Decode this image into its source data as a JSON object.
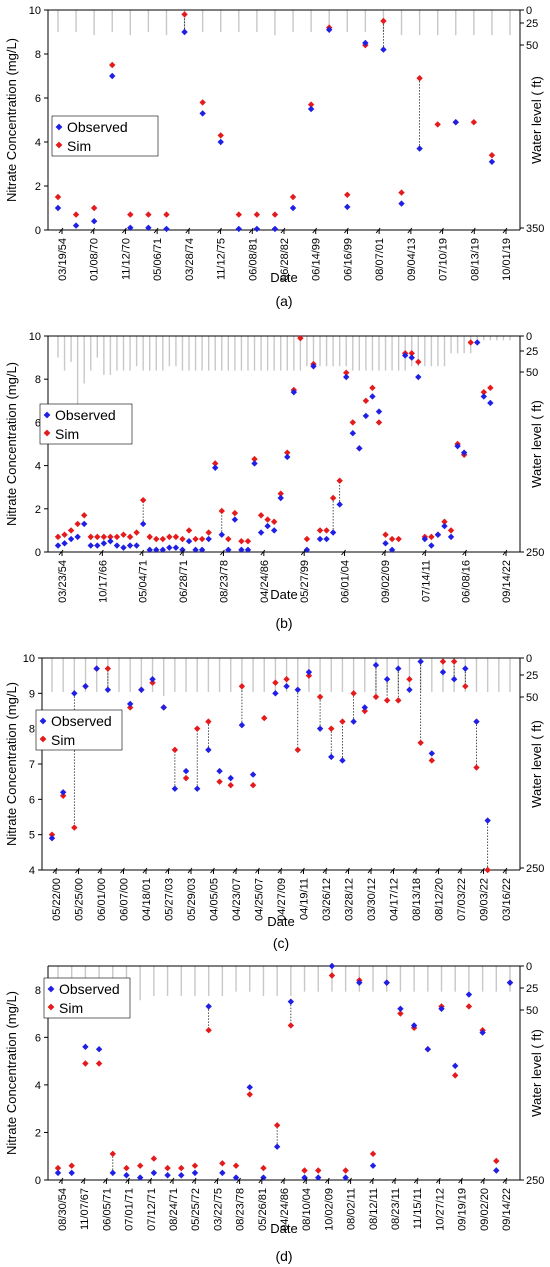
{
  "chart_data": [
    {
      "type": "scatter",
      "panel_label": "(a)",
      "xlabel": "Date",
      "ylabel": "Nitrate Concentration (mg/L)",
      "y2label": "Water level ( ft)",
      "ylim": [
        0,
        10
      ],
      "yticks": [
        0,
        2,
        4,
        6,
        8,
        10
      ],
      "y2lim": [
        0,
        350
      ],
      "y2ticks": [
        0,
        25,
        50,
        350
      ],
      "legend": [
        "Observed",
        "Sim"
      ],
      "legend_position": "middle-left",
      "categories": [
        "03/19/54",
        "01/08/70",
        "11/12/70",
        "05/06/71",
        "03/28/74",
        "11/12/75",
        "06/08/81",
        "06/28/82",
        "06/14/99",
        "06/16/99",
        "08/07/01",
        "09/04/13",
        "07/10/19",
        "08/13/19",
        "10/01/19"
      ],
      "n_points": 26,
      "observed": [
        1.0,
        0.2,
        0.4,
        7.0,
        0.1,
        0.1,
        0.05,
        9.0,
        5.3,
        4.0,
        0.05,
        0.05,
        0.05,
        1.0,
        5.5,
        9.1,
        1.05,
        8.5,
        8.2,
        1.2,
        3.7,
        null,
        4.9,
        null,
        3.1,
        null
      ],
      "sim": [
        1.5,
        0.7,
        1.0,
        7.5,
        0.7,
        0.7,
        0.7,
        9.8,
        5.8,
        4.3,
        0.7,
        0.7,
        0.7,
        1.5,
        5.7,
        9.2,
        1.6,
        8.4,
        9.5,
        1.7,
        6.9,
        4.8,
        4.9,
        4.9,
        3.4,
        null
      ],
      "water_level": [
        35,
        35,
        40,
        35,
        40,
        35,
        40,
        35,
        35,
        35,
        35,
        35,
        40,
        35,
        35,
        35,
        35,
        35,
        35,
        40,
        40,
        40,
        40,
        40,
        40,
        40
      ]
    },
    {
      "type": "scatter",
      "panel_label": "(b)",
      "xlabel": "Date",
      "ylabel": "Nitrate Concentration (mg/L)",
      "y2label": "Water level ( ft)",
      "ylim": [
        0,
        10
      ],
      "yticks": [
        0,
        2,
        4,
        6,
        8,
        10
      ],
      "y2lim": [
        0,
        250
      ],
      "y2ticks": [
        0,
        25,
        50,
        250
      ],
      "legend": [
        "Observed",
        "Sim"
      ],
      "legend_position": "middle-left",
      "categories": [
        "03/23/54",
        "10/17/66",
        "05/04/71",
        "06/28/71",
        "08/23/78",
        "04/24/86",
        "05/27/99",
        "06/01/04",
        "09/02/09",
        "07/14/11",
        "06/08/16",
        "09/14/22"
      ],
      "n_points": 70,
      "observed": [
        0.3,
        0.4,
        0.6,
        0.7,
        1.3,
        0.3,
        0.3,
        0.4,
        0.5,
        0.3,
        0.2,
        0.3,
        0.3,
        1.3,
        0.1,
        0.1,
        0.1,
        0.2,
        0.2,
        0.1,
        0.5,
        0.1,
        0.1,
        0.6,
        3.9,
        0.8,
        0.1,
        1.5,
        0.1,
        0.1,
        4.1,
        0.9,
        1.2,
        1.0,
        2.5,
        4.4,
        7.4,
        null,
        0.1,
        8.6,
        0.6,
        0.6,
        0.9,
        2.2,
        8.1,
        5.5,
        4.8,
        6.3,
        7.2,
        6.5,
        0.4,
        0.1,
        null,
        9.1,
        9.0,
        8.1,
        0.6,
        0.3,
        0.8,
        1.2,
        0.7,
        4.9,
        4.6,
        null,
        9.7,
        7.2,
        6.9,
        null,
        null,
        null
      ],
      "sim": [
        0.7,
        0.8,
        1.0,
        1.3,
        1.7,
        0.7,
        0.7,
        0.7,
        0.7,
        0.7,
        0.8,
        0.7,
        0.9,
        2.4,
        0.7,
        0.6,
        0.6,
        0.7,
        0.7,
        0.6,
        1.0,
        0.6,
        0.6,
        0.9,
        4.1,
        1.9,
        0.6,
        1.8,
        0.5,
        0.5,
        4.3,
        1.7,
        1.5,
        1.4,
        2.7,
        4.6,
        7.5,
        9.9,
        0.6,
        8.7,
        1.0,
        1.0,
        2.5,
        3.3,
        8.3,
        6.0,
        4.8,
        7.0,
        7.6,
        6.0,
        0.8,
        0.6,
        0.6,
        9.2,
        9.2,
        8.8,
        0.7,
        0.7,
        0.8,
        1.4,
        1.0,
        5.0,
        4.5,
        9.7,
        null,
        7.4,
        7.6,
        null,
        null,
        null
      ],
      "water_level": [
        25,
        40,
        30,
        80,
        55,
        40,
        25,
        45,
        45,
        40,
        40,
        40,
        35,
        40,
        40,
        40,
        40,
        35,
        35,
        40,
        40,
        40,
        40,
        40,
        40,
        40,
        40,
        40,
        40,
        40,
        40,
        40,
        40,
        40,
        40,
        40,
        40,
        40,
        35,
        35,
        35,
        35,
        35,
        35,
        35,
        40,
        40,
        40,
        40,
        40,
        40,
        40,
        40,
        40,
        35,
        35,
        35,
        35,
        35,
        35,
        20,
        20,
        20,
        20,
        10,
        5,
        5,
        5,
        5,
        5
      ]
    },
    {
      "type": "scatter",
      "panel_label": "(c)",
      "xlabel": "Date",
      "ylabel": "Nitrate Concentration (mg/L)",
      "y2label": "Water level ( ft)",
      "ylim": [
        4,
        10
      ],
      "yticks": [
        4,
        5,
        6,
        7,
        8,
        9,
        10
      ],
      "y2lim": [
        0,
        250
      ],
      "y2ticks": [
        0,
        25,
        50,
        250
      ],
      "legend": [
        "Observed",
        "Sim"
      ],
      "legend_position": "middle-left",
      "categories": [
        "05/22/00",
        "05/25/00",
        "06/01/00",
        "06/07/00",
        "04/18/01",
        "05/27/03",
        "05/29/03",
        "04/05/05",
        "04/23/07",
        "04/25/07",
        "04/27/09",
        "04/19/11",
        "03/26/12",
        "03/28/12",
        "03/30/12",
        "04/17/12",
        "08/13/18",
        "08/12/20",
        "07/03/22",
        "09/03/22",
        "03/16/22"
      ],
      "n_points": 42,
      "observed": [
        4.9,
        6.2,
        9.0,
        9.2,
        9.7,
        9.1,
        null,
        8.7,
        9.1,
        9.4,
        8.6,
        6.3,
        6.8,
        6.3,
        7.4,
        6.8,
        6.6,
        8.1,
        6.7,
        null,
        9.0,
        9.2,
        9.1,
        9.6,
        8.0,
        7.2,
        7.1,
        8.2,
        8.6,
        9.8,
        9.4,
        9.7,
        9.1,
        9.9,
        7.3,
        9.6,
        9.4,
        9.7,
        8.2,
        5.4,
        null,
        null
      ],
      "sim": [
        5.0,
        6.1,
        5.2,
        9.2,
        9.7,
        9.7,
        8.2,
        8.6,
        9.1,
        9.3,
        8.6,
        7.4,
        6.6,
        8.0,
        8.2,
        6.5,
        6.4,
        9.2,
        6.4,
        8.3,
        9.3,
        9.4,
        7.4,
        9.5,
        8.9,
        8.0,
        8.2,
        9.0,
        8.5,
        8.9,
        8.8,
        8.8,
        9.4,
        7.6,
        7.1,
        9.9,
        9.9,
        9.2,
        6.9,
        4.0,
        null,
        null
      ],
      "water_level": [
        40,
        40,
        45,
        40,
        40,
        40,
        40,
        40,
        40,
        40,
        45,
        40,
        40,
        40,
        40,
        40,
        40,
        40,
        40,
        40,
        40,
        40,
        40,
        40,
        40,
        40,
        40,
        40,
        40,
        40,
        40,
        40,
        40,
        40,
        40,
        40,
        40,
        40,
        40,
        40,
        40,
        40
      ]
    },
    {
      "type": "scatter",
      "panel_label": "(d)",
      "xlabel": "Date",
      "ylabel": "Nitrate Concentration (mg/L)",
      "y2label": "Water level ( ft)",
      "ylim": [
        0,
        9
      ],
      "yticks": [
        0,
        2,
        4,
        6,
        8
      ],
      "y2lim": [
        0,
        250
      ],
      "y2ticks": [
        0,
        25,
        50,
        250
      ],
      "legend": [
        "Observed",
        "Sim"
      ],
      "legend_position": "middle-left",
      "categories": [
        "08/30/54",
        "11/07/67",
        "06/05/71",
        "07/01/71",
        "07/12/71",
        "08/24/71",
        "05/25/72",
        "03/22/75",
        "08/23/78",
        "05/26/81",
        "04/24/86",
        "08/10/04",
        "10/02/09",
        "08/02/11",
        "08/12/11",
        "08/23/11",
        "11/15/11",
        "10/27/12",
        "09/19/19",
        "09/02/20",
        "09/14/22"
      ],
      "n_points": 34,
      "observed": [
        0.3,
        0.3,
        5.6,
        5.5,
        0.3,
        0.2,
        0.1,
        0.3,
        0.2,
        0.2,
        0.3,
        7.3,
        0.3,
        0.1,
        3.9,
        0.1,
        1.4,
        7.5,
        0.1,
        0.1,
        9.0,
        0.1,
        8.3,
        0.6,
        8.3,
        7.2,
        6.5,
        5.5,
        7.2,
        4.8,
        7.8,
        6.2,
        0.4,
        8.3
      ],
      "sim": [
        0.5,
        0.6,
        4.9,
        4.9,
        1.1,
        0.5,
        0.6,
        0.9,
        0.5,
        0.5,
        0.6,
        6.3,
        0.7,
        0.6,
        3.6,
        0.5,
        2.3,
        6.5,
        0.4,
        0.4,
        8.6,
        0.4,
        8.4,
        1.1,
        8.3,
        7.0,
        6.4,
        5.5,
        7.3,
        4.4,
        7.3,
        6.3,
        0.8,
        8.3
      ],
      "water_level": [
        35,
        40,
        35,
        30,
        35,
        35,
        40,
        35,
        35,
        35,
        35,
        35,
        35,
        30,
        30,
        35,
        35,
        35,
        30,
        30,
        30,
        30,
        30,
        30,
        30,
        30,
        30,
        30,
        30,
        30,
        30,
        30,
        30,
        30
      ]
    }
  ]
}
